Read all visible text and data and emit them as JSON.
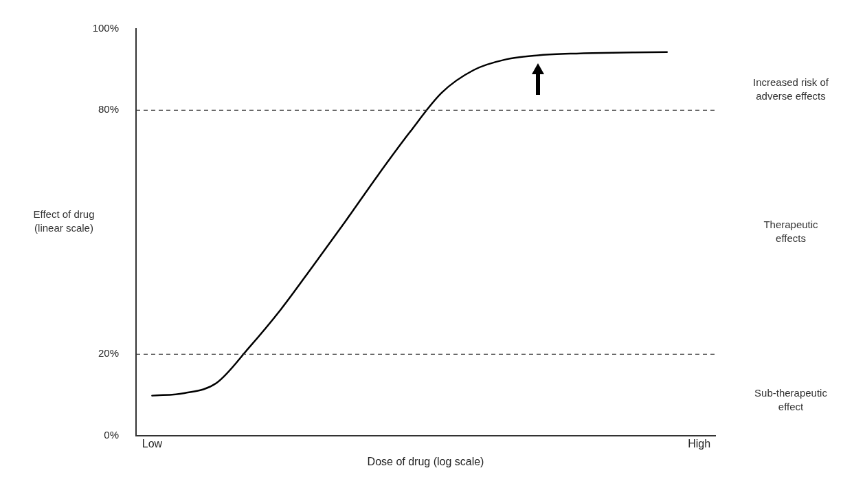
{
  "chart_data": {
    "type": "line",
    "xlabel": "Dose of drug (log scale)",
    "ylabel": "Effect of drug\n(linear scale)",
    "categories": [
      "Low",
      null,
      null,
      null,
      null,
      null,
      null,
      null,
      null,
      null,
      null,
      null,
      null,
      null,
      null,
      null,
      null,
      "High"
    ],
    "series": [
      {
        "color": "#000000",
        "values": [
          9.8,
          10.4,
          12.9,
          21.5,
          31,
          41.7,
          52.6,
          63.8,
          74.5,
          84.3,
          89.9,
          92.5,
          93.5,
          93.9,
          94.1,
          94.2,
          94.3,
          null
        ]
      }
    ],
    "ylim": [
      0,
      100
    ],
    "yticks": [
      {
        "value": 0,
        "label": "0%"
      },
      {
        "value": 20,
        "label": "20%"
      },
      {
        "value": 80,
        "label": "80%"
      },
      {
        "value": 100,
        "label": "100%"
      }
    ],
    "ref_lines": [
      {
        "axis": "y",
        "value": 80,
        "color": "#333333",
        "line_style": "dashed"
      },
      {
        "axis": "y",
        "value": 20,
        "color": "#333333",
        "line_style": "dashed"
      }
    ],
    "annotations": [
      "Increased risk of\nadverse effects",
      "Therapeutic\neffects",
      "Sub-therapeutic\neffect"
    ],
    "grid": false,
    "legend": false,
    "marker": "none",
    "line_style": "solid"
  }
}
